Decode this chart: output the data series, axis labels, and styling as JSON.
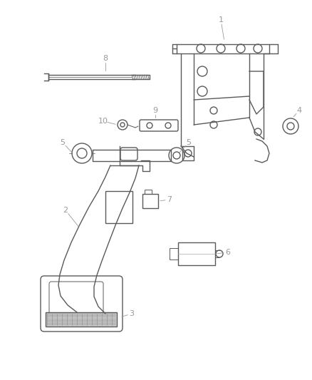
{
  "background_color": "#ffffff",
  "line_color": "#5a5a5a",
  "label_color": "#999999",
  "figsize": [
    4.38,
    5.33
  ],
  "dpi": 100
}
